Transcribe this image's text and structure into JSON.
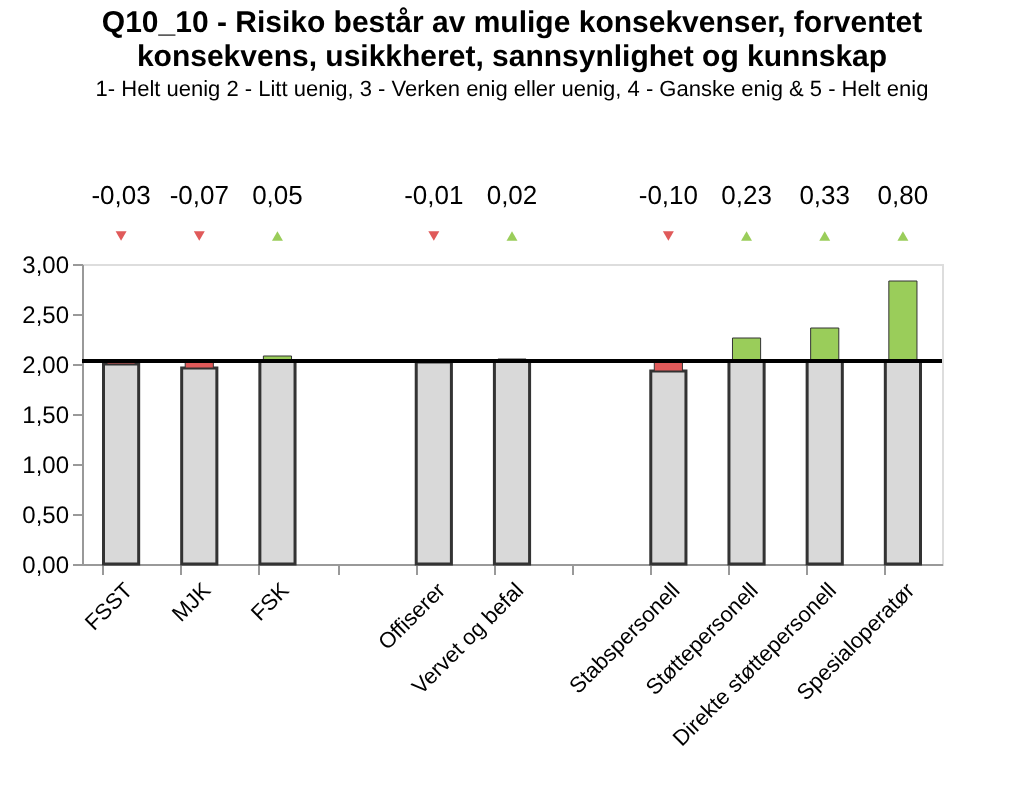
{
  "chart_data": {
    "type": "bar",
    "title": "Q10_10 - Risiko består av mulige konsekvenser, forventet konsekvens, usikkheret, sannsynlighet og kunnskap",
    "subtitle": "1- Helt uenig 2 - Litt uenig, 3  - Verken enig eller uenig, 4 - Ganske enig & 5 - Helt enig",
    "categories": [
      "FSST",
      "MJK",
      "FSK",
      null,
      "Offiserer",
      "Vervet og befal",
      null,
      "Stabspersonell",
      "Støttepersonell",
      "Direkte støttepersonell",
      "Spesialoperatør"
    ],
    "series": [
      {
        "color": "#d9d9d9",
        "values": [
          2.0,
          1.96,
          2.03,
          null,
          2.02,
          2.03,
          null,
          1.93,
          2.03,
          2.03,
          2.03
        ]
      },
      {
        "colors": [
          "#e05a5a",
          "#e05a5a",
          "#9acd5a",
          null,
          "#e05a5a",
          "#9acd5a",
          null,
          "#e05a5a",
          "#9acd5a",
          "#9acd5a",
          "#9acd5a"
        ],
        "marker": "triangle",
        "base": [
          2.03,
          2.03,
          2.03,
          null,
          2.03,
          2.03,
          null,
          2.03,
          2.03,
          2.03,
          2.03
        ],
        "values": [
          -0.03,
          -0.07,
          0.05,
          null,
          -0.01,
          0.02,
          null,
          -0.1,
          0.23,
          0.33,
          0.8
        ],
        "value_labels": [
          "-0,03",
          "-0,07",
          "0,05",
          null,
          "-0,01",
          "0,02",
          null,
          "-0,10",
          "0,23",
          "0,33",
          "0,80"
        ]
      }
    ],
    "ref_lines": [
      {
        "axis": "y",
        "value": 2.03,
        "color": "#000000"
      }
    ],
    "ylim": [
      0,
      3
    ],
    "yticks": [
      {
        "value": 0,
        "label": "0,00"
      },
      {
        "value": 0.5,
        "label": "0,50"
      },
      {
        "value": 1,
        "label": "1,00"
      },
      {
        "value": 1.5,
        "label": "1,50"
      },
      {
        "value": 2,
        "label": "2,00"
      },
      {
        "value": 2.5,
        "label": "2,50"
      },
      {
        "value": 3,
        "label": "3,00"
      }
    ],
    "grid": false
  }
}
